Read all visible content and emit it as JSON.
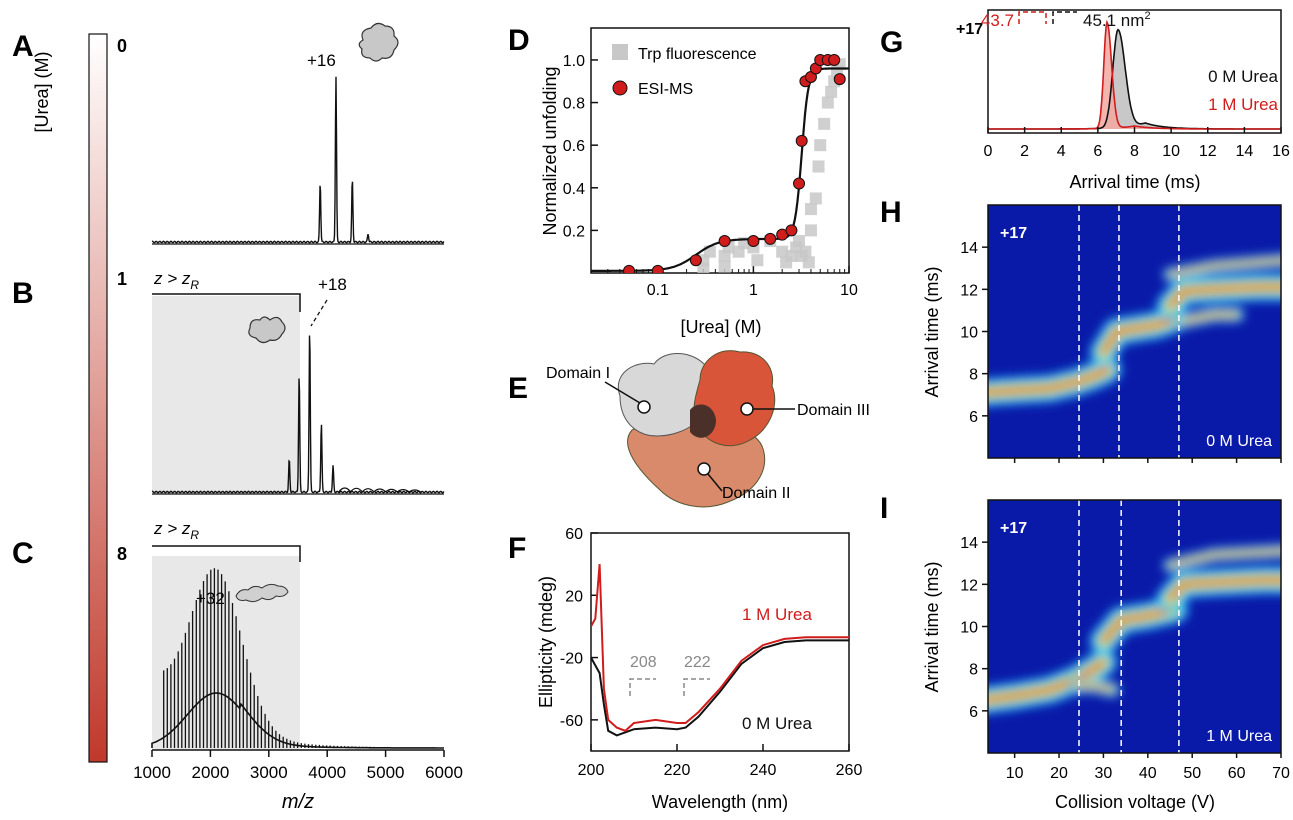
{
  "chart_data": [
    {
      "panel": "A",
      "type": "line",
      "urea_level": "0",
      "charge_label": "+16",
      "peaks": [
        {
          "mz": 3880,
          "height": 0.36
        },
        {
          "mz": 4150,
          "height": 1.0
        },
        {
          "mz": 4430,
          "height": 0.38
        },
        {
          "mz": 4700,
          "height": 0.05
        }
      ],
      "xlim": [
        1000,
        6000
      ]
    },
    {
      "panel": "B",
      "type": "line",
      "urea_level": "1",
      "charge_label": "+18",
      "bracket_label": "z > z",
      "bracket_sub": "R",
      "peaks": [
        {
          "mz": 3350,
          "height": 0.2
        },
        {
          "mz": 3520,
          "height": 0.72
        },
        {
          "mz": 3700,
          "height": 1.0
        },
        {
          "mz": 3900,
          "height": 0.42
        },
        {
          "mz": 4100,
          "height": 0.16
        }
      ],
      "xlim": [
        1000,
        6000
      ]
    },
    {
      "panel": "C",
      "type": "line",
      "urea_level": "8",
      "charge_label": "+32",
      "bracket_label": "z > z",
      "bracket_sub": "R",
      "envelope_center_mz": 2100,
      "xlim": [
        1000,
        6000
      ],
      "xticks": [
        "1000",
        "2000",
        "3000",
        "4000",
        "5000",
        "6000"
      ],
      "xlabel": "m/z"
    },
    {
      "panel": "colorbar",
      "type": "heatmap",
      "label": "[Urea] (M)",
      "colors": [
        "#ffffff",
        "#c0392b"
      ]
    },
    {
      "panel": "D",
      "type": "scatter",
      "xlabel": "[Urea] (M)",
      "ylabel": "Normalized unfolding",
      "xscale": "log",
      "xlim": [
        0.02,
        10
      ],
      "ylim": [
        0,
        1.15
      ],
      "xticks": [
        "0.1",
        "1",
        "10"
      ],
      "yticks": [
        "0.2",
        "0.4",
        "0.6",
        "0.8",
        "1.0"
      ],
      "series": [
        {
          "name": "Trp fluorescence",
          "marker": "square",
          "color": "#c8c8c8",
          "x": [
            0.3,
            0.3,
            0.35,
            0.5,
            0.5,
            0.55,
            0.7,
            0.8,
            1.0,
            1.1,
            1.5,
            2.0,
            2.2,
            2.5,
            2.8,
            3.0,
            3.2,
            3.5,
            3.8,
            4.0,
            4.0,
            4.5,
            4.8,
            5.0,
            5.5,
            6.0,
            6.5,
            7.0,
            7.5,
            8.0
          ],
          "y": [
            0.02,
            0.06,
            0.1,
            0.03,
            0.08,
            0.12,
            0.1,
            0.14,
            0.12,
            0.06,
            0.15,
            0.1,
            0.05,
            0.08,
            0.12,
            0.15,
            0.08,
            0.1,
            0.05,
            0.2,
            0.3,
            0.35,
            0.5,
            0.6,
            0.7,
            0.8,
            0.85,
            0.9,
            0.95,
            0.98
          ]
        },
        {
          "name": "ESI-MS",
          "marker": "circle",
          "color": "#d01c1c",
          "x": [
            0.05,
            0.1,
            0.25,
            0.5,
            1.0,
            1.5,
            2.0,
            2.5,
            3.0,
            3.2,
            3.5,
            4.0,
            4.5,
            5.0,
            6.0,
            7.0,
            8.0
          ],
          "y": [
            0.01,
            0.01,
            0.06,
            0.15,
            0.15,
            0.16,
            0.18,
            0.2,
            0.42,
            0.62,
            0.9,
            0.92,
            0.96,
            1.0,
            1.0,
            1.0,
            0.91
          ]
        }
      ],
      "fit": {
        "type": "two-step sigmoid",
        "step1_mid": 0.25,
        "step1_height": 0.15,
        "step2_mid": 3.2,
        "step2_height": 0.8
      }
    },
    {
      "panel": "E",
      "type": "structure",
      "labels": [
        "Domain I",
        "Domain III",
        "Domain II"
      ]
    },
    {
      "panel": "F",
      "type": "line",
      "xlabel": "Wavelength (nm)",
      "ylabel": "Ellipticity (mdeg)",
      "xlim": [
        200,
        260
      ],
      "ylim": [
        -80,
        60
      ],
      "xticks": [
        "200",
        "220",
        "240",
        "260"
      ],
      "yticks": [
        "60",
        "20",
        "-20",
        "-60"
      ],
      "annotations": [
        "208",
        "222"
      ],
      "series": [
        {
          "name": "1 M Urea",
          "color": "#d01c1c",
          "x": [
            200,
            201,
            202,
            203,
            204,
            206,
            208,
            210,
            215,
            220,
            222,
            225,
            230,
            235,
            240,
            245,
            250,
            255,
            260
          ],
          "y": [
            0,
            5,
            40,
            -40,
            -60,
            -65,
            -67,
            -62,
            -60,
            -62,
            -62,
            -55,
            -40,
            -22,
            -12,
            -8,
            -7,
            -7,
            -7
          ]
        },
        {
          "name": "0 M Urea",
          "color": "#111111",
          "x": [
            200,
            201,
            202,
            203,
            204,
            206,
            208,
            210,
            215,
            220,
            222,
            225,
            230,
            235,
            240,
            245,
            250,
            255,
            260
          ],
          "y": [
            -20,
            -25,
            -30,
            -50,
            -67,
            -70,
            -68,
            -66,
            -65,
            -66,
            -65,
            -58,
            -42,
            -24,
            -14,
            -10,
            -9,
            -9,
            -9
          ]
        }
      ]
    },
    {
      "panel": "G",
      "type": "area",
      "charge_label": "+17",
      "xlabel": "Arrival time (ms)",
      "xlim": [
        0,
        16
      ],
      "xticks": [
        "0",
        "2",
        "4",
        "6",
        "8",
        "10",
        "12",
        "14",
        "16"
      ],
      "annotations": {
        "red": "43.7",
        "black": "45.1 nm"
      },
      "series": [
        {
          "name": "0 M Urea",
          "color": "#111111",
          "peak_x": 7.1
        },
        {
          "name": "1 M Urea",
          "color": "#d01c1c",
          "peak_x": 6.5
        }
      ]
    },
    {
      "panel": "H",
      "type": "heatmap",
      "charge_label": "+17",
      "condition": "0 M Urea",
      "ylabel": "Arrival time (ms)",
      "ylim": [
        4,
        16
      ],
      "yticks": [
        "6",
        "8",
        "10",
        "12",
        "14"
      ],
      "xlim": [
        4,
        70
      ],
      "transitions_v": [
        24.5,
        33.5,
        47.0
      ]
    },
    {
      "panel": "I",
      "type": "heatmap",
      "charge_label": "+17",
      "condition": "1 M Urea",
      "xlabel": "Collision voltage (V)",
      "ylabel": "Arrival time (ms)",
      "ylim": [
        4,
        16
      ],
      "yticks": [
        "6",
        "8",
        "10",
        "12",
        "14"
      ],
      "xlim": [
        4,
        70
      ],
      "xticks": [
        "10",
        "20",
        "30",
        "40",
        "50",
        "60",
        "70"
      ],
      "transitions_v": [
        24.5,
        34.0,
        47.0
      ]
    }
  ],
  "panel_labels": [
    "A",
    "B",
    "C",
    "D",
    "E",
    "F",
    "G",
    "H",
    "I"
  ]
}
